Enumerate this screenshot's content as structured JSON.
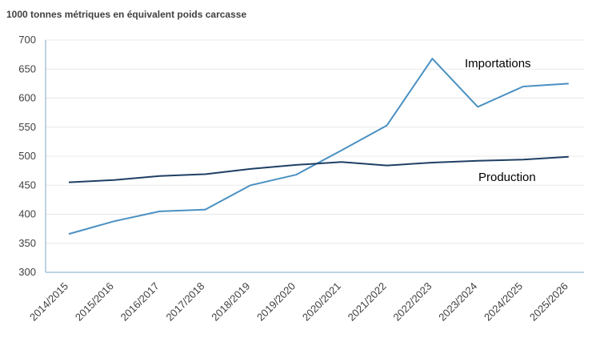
{
  "chart_data": {
    "type": "line",
    "title": "1000 tonnes métriques en équivalent poids carcasse",
    "categories": [
      "2014/2015",
      "2015/2016",
      "2016/2017",
      "2017/2018",
      "2018/2019",
      "2019/2020",
      "2020/2021",
      "2021/2022",
      "2022/2023",
      "2023/2024",
      "2024/2025",
      "2025/2026"
    ],
    "ylim": [
      300,
      700
    ],
    "yticks": [
      "300",
      "350",
      "400",
      "450",
      "500",
      "550",
      "600",
      "650",
      "700"
    ],
    "grid": true,
    "series": [
      {
        "name": "Importations",
        "color": "#4a90c2",
        "values": [
          366,
          388,
          405,
          408,
          450,
          468,
          510,
          553,
          668,
          585,
          620,
          625
        ]
      },
      {
        "name": "Production",
        "color": "#1f3f64",
        "values": [
          455,
          459,
          466,
          469,
          478,
          485,
          490,
          484,
          489,
          492,
          494,
          499
        ]
      }
    ]
  }
}
